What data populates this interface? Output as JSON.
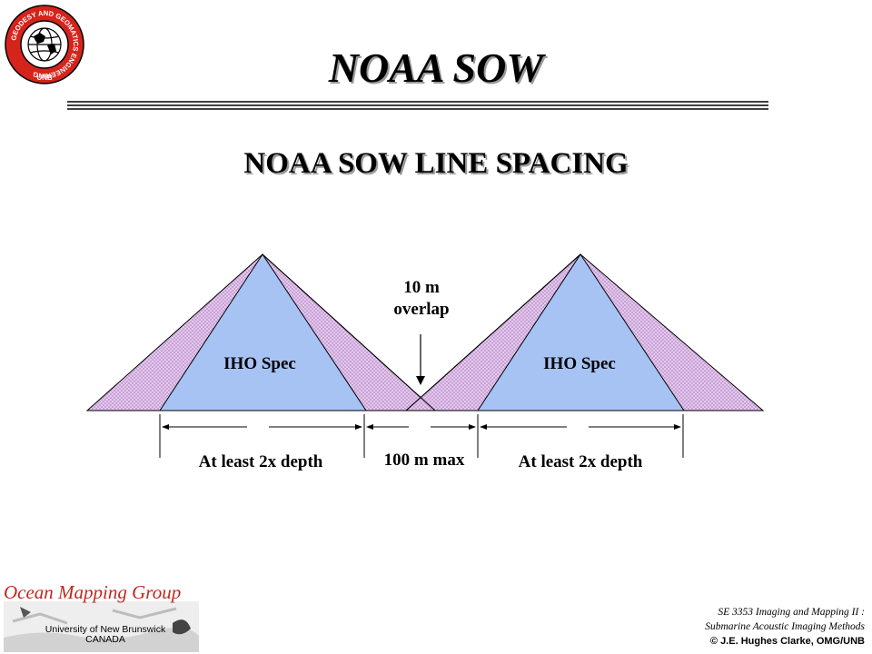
{
  "header": {
    "title": "NOAA SOW",
    "logo_ring_text": "GEODESY AND GEOMATICS ENGINEERING",
    "logo_bottom_text": "UNB"
  },
  "slide": {
    "subtitle": "NOAA SOW LINE SPACING"
  },
  "diagram": {
    "left_swath_label": "IHO Spec",
    "right_swath_label": "IHO Spec",
    "overlap_label_line1": "10 m",
    "overlap_label_line2": "overlap",
    "left_width_label": "At least 2x depth",
    "gap_label": "100 m max",
    "right_width_label": "At least 2x depth",
    "colors": {
      "inner_fill": "#a7c3f4",
      "outer_fill": "#e9cdef",
      "outer_hatch": "#b48bc8",
      "stroke": "#000000"
    }
  },
  "footer": {
    "group_name": "Ocean Mapping Group",
    "university_line1": "University of New Brunswick",
    "university_line2": "CANADA",
    "course_line1": "SE 3353 Imaging and Mapping II :",
    "course_line2": "Submarine Acoustic Imaging Methods",
    "copyright": "© J.E. Hughes Clarke, OMG/UNB",
    "brand_red": "#c0281f"
  }
}
